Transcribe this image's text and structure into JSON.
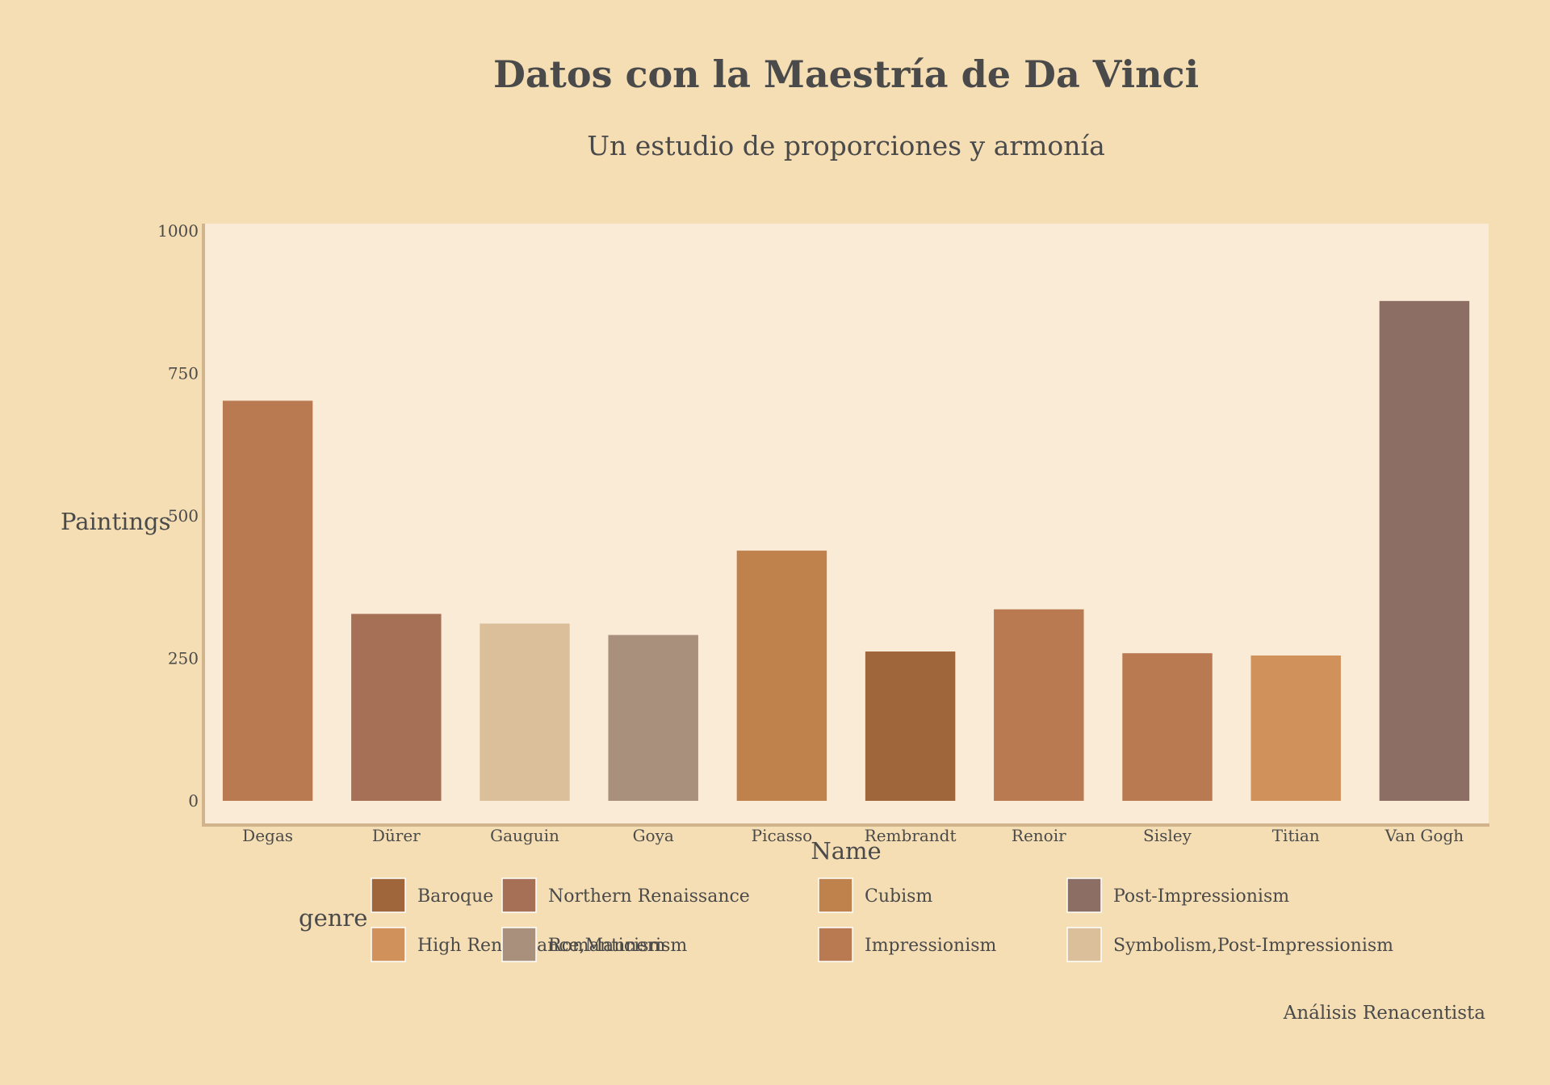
{
  "chart_data": {
    "type": "bar",
    "title": "Datos con la Maestría de Da Vinci",
    "subtitle": "Un estudio de proporciones y armonía",
    "xlabel": "Name",
    "ylabel": "Paintings",
    "ylim": [
      0,
      1000
    ],
    "yticks": [
      0,
      250,
      500,
      750,
      1000
    ],
    "grid": false,
    "legend_title": "genre",
    "legend_position": "bottom",
    "caption": "Análisis Renacentista",
    "categories": [
      "Degas",
      "Dürer",
      "Gauguin",
      "Goya",
      "Picasso",
      "Rembrandt",
      "Renoir",
      "Sisley",
      "Titian",
      "Van Gogh"
    ],
    "values": [
      702,
      328,
      311,
      291,
      439,
      262,
      336,
      259,
      255,
      877
    ],
    "genres": [
      "Impressionism",
      "Northern Renaissance",
      "Symbolism,Post-Impressionism",
      "Romanticism",
      "Cubism",
      "Baroque",
      "Impressionism",
      "Impressionism",
      "High Renaissance,Mannerism",
      "Post-Impressionism"
    ],
    "legend": [
      {
        "name": "Baroque",
        "color": "#a0663b"
      },
      {
        "name": "High Renaissance,Mannerism",
        "color": "#d0915a"
      },
      {
        "name": "Northern Renaissance",
        "color": "#a67057"
      },
      {
        "name": "Romanticism",
        "color": "#a9907d"
      },
      {
        "name": "Cubism",
        "color": "#c0824d"
      },
      {
        "name": "Impressionism",
        "color": "#b97a52"
      },
      {
        "name": "Post-Impressionism",
        "color": "#8c6e65"
      },
      {
        "name": "Symbolism,Post-Impressionism",
        "color": "#dbbf9b"
      }
    ],
    "colors": {
      "background": "#f5deb3",
      "plot_background": "#faebd7",
      "axis_line": "#d2b48c",
      "text": "#4a4a4a"
    }
  }
}
